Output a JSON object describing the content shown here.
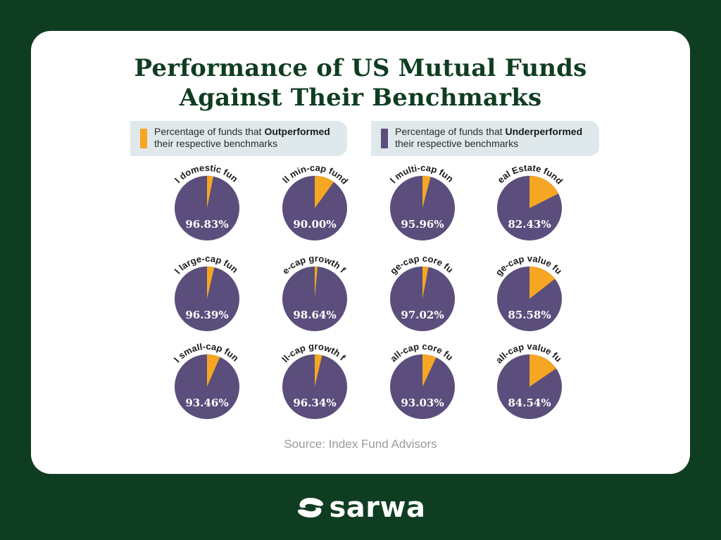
{
  "title_line1": "Performance of US Mutual Funds",
  "title_line2": "Against Their Benchmarks",
  "legend": {
    "outperformed_prefix": "Percentage of funds that ",
    "outperformed_bold": "Outperformed",
    "outperformed_suffix": "their respective benchmarks",
    "underperformed_prefix": "Percentage of funds that ",
    "underperformed_bold": "Underperformed",
    "underperformed_suffix": "their respective benchmarks"
  },
  "colors": {
    "outperformed": "#f5a623",
    "underperformed": "#5b4e7c",
    "background": "#0f3d22",
    "title": "#0f3d22"
  },
  "chart_data": {
    "type": "pie",
    "series": [
      "Underperformed",
      "Outperformed"
    ],
    "charts": [
      {
        "label": "All domestic funds",
        "underperformed": 96.83,
        "display": "96.83%"
      },
      {
        "label": "All min-cap funds",
        "underperformed": 90.0,
        "display": "90.00%"
      },
      {
        "label": "All multi-cap funds",
        "underperformed": 95.96,
        "display": "95.96%"
      },
      {
        "label": "Real Estate funds",
        "underperformed": 82.43,
        "display": "82.43%"
      },
      {
        "label": "All large-cap funds",
        "underperformed": 96.39,
        "display": "96.39%"
      },
      {
        "label": "Large-cap growth funds",
        "underperformed": 98.64,
        "display": "98.64%"
      },
      {
        "label": "Large-cap core funds",
        "underperformed": 97.02,
        "display": "97.02%"
      },
      {
        "label": "Large-cap value funds",
        "underperformed": 85.58,
        "display": "85.58%"
      },
      {
        "label": "All small-cap funds",
        "underperformed": 93.46,
        "display": "93.46%"
      },
      {
        "label": "Small-cap growth funds",
        "underperformed": 96.34,
        "display": "96.34%"
      },
      {
        "label": "Small-cap core funds",
        "underperformed": 93.03,
        "display": "93.03%"
      },
      {
        "label": "Small-cap value funds",
        "underperformed": 84.54,
        "display": "84.54%"
      }
    ]
  },
  "source": "Source: Index Fund Advisors",
  "brand": {
    "name": "sarwa",
    "icon": "sarwa-logo-icon"
  }
}
